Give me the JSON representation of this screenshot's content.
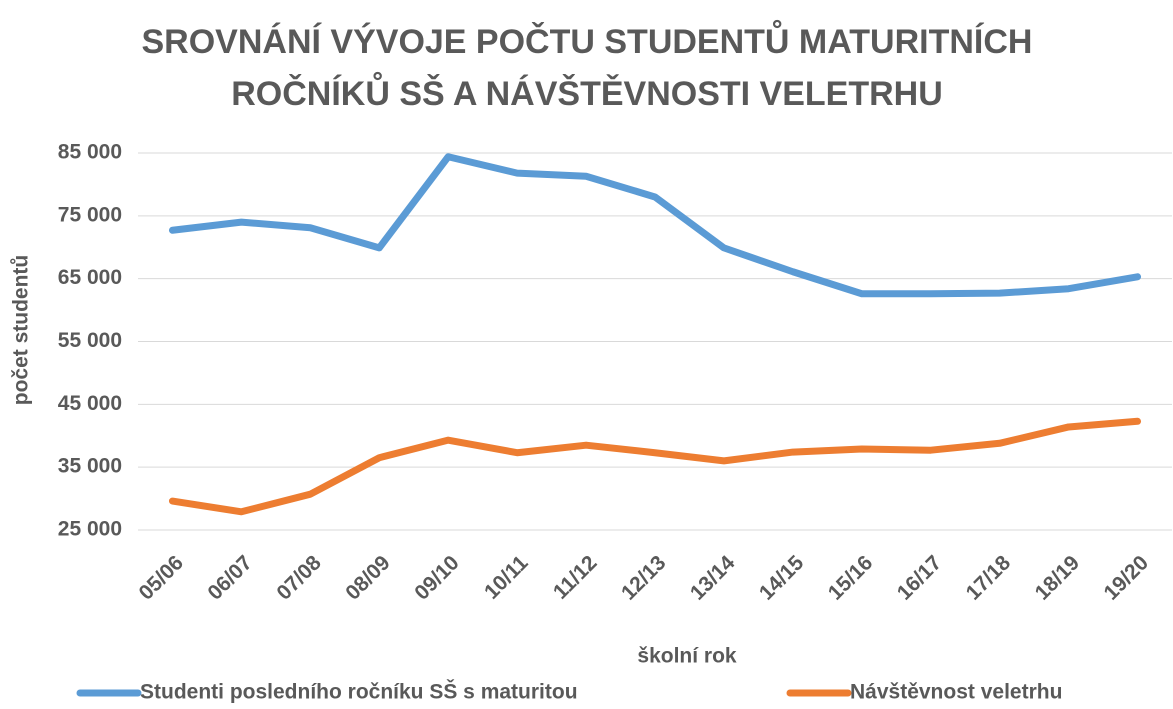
{
  "chart_data": {
    "type": "line",
    "title": "SROVNÁNÍ VÝVOJE POČTU STUDENTŮ MATURITNÍCH ROČNÍKŮ SŠ A NÁVŠTĚVNOSTI VELETRHU",
    "x_label": "školní rok",
    "y_label": "počet studentů",
    "categories": [
      "05/06",
      "06/07",
      "07/08",
      "08/09",
      "09/10",
      "10/11",
      "11/12",
      "12/13",
      "13/14",
      "14/15",
      "15/16",
      "16/17",
      "17/18",
      "18/19",
      "19/20"
    ],
    "series": [
      {
        "name": "Studenti posledního ročníku SŠ s maturitou",
        "color": "#5b9bd5",
        "values": [
          72700,
          74000,
          73100,
          69900,
          84400,
          81800,
          81300,
          78000,
          69900,
          66100,
          62600,
          62600,
          62700,
          63400,
          65300
        ]
      },
      {
        "name": "Návštěvnost veletrhu",
        "color": "#ed7d31",
        "values": [
          29600,
          27900,
          30700,
          36500,
          39300,
          37300,
          38500,
          37300,
          36000,
          37400,
          37900,
          37700,
          38800,
          41400,
          42300
        ]
      }
    ],
    "ylim": [
      25000,
      85000
    ],
    "yticks": [
      {
        "value": 25000,
        "label": "25 000"
      },
      {
        "value": 35000,
        "label": "35 000"
      },
      {
        "value": 45000,
        "label": "45 000"
      },
      {
        "value": 55000,
        "label": "55 000"
      },
      {
        "value": 65000,
        "label": "65 000"
      },
      {
        "value": 75000,
        "label": "75 000"
      },
      {
        "value": 85000,
        "label": "85 000"
      }
    ],
    "grid": true,
    "legend": "bottom"
  }
}
